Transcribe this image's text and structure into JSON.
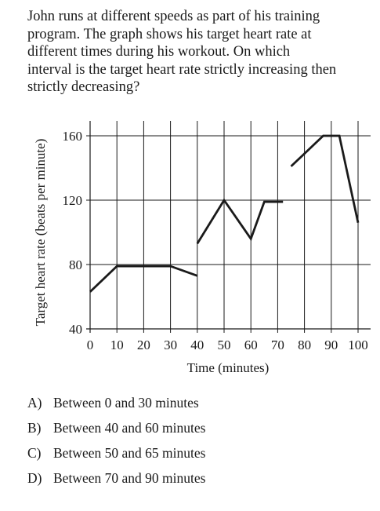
{
  "question": {
    "line1": "John runs at different speeds as part of his training",
    "line2": "program.  The graph shows his target heart rate at",
    "line3": "different times during his workout.  On which",
    "line4": "interval is the target heart rate strictly increasing then",
    "line5": "strictly decreasing?"
  },
  "chart_data": {
    "type": "line",
    "title": "",
    "xlabel": "Time (minutes)",
    "ylabel": "Target heart rate (beats per minute)",
    "xlim": [
      0,
      100
    ],
    "ylim": [
      40,
      160
    ],
    "x_ticks": [
      0,
      10,
      20,
      30,
      40,
      50,
      60,
      70,
      80,
      90,
      100
    ],
    "y_ticks": [
      40,
      80,
      120,
      160
    ],
    "grid": true,
    "series": [
      {
        "x": [
          0,
          10,
          30,
          40
        ],
        "y": [
          63,
          79,
          79,
          73
        ]
      },
      {
        "x": [
          40,
          50,
          60,
          65,
          72
        ],
        "y": [
          93,
          120,
          96,
          119,
          119
        ]
      },
      {
        "x": [
          75,
          87,
          93,
          100
        ],
        "y": [
          141,
          160,
          160,
          106
        ]
      }
    ]
  },
  "choices": [
    {
      "letter": "A)",
      "text": "Between 0 and 30 minutes"
    },
    {
      "letter": "B)",
      "text": "Between 40 and 60 minutes"
    },
    {
      "letter": "C)",
      "text": "Between 50 and 65 minutes"
    },
    {
      "letter": "D)",
      "text": "Between 70 and 90 minutes"
    }
  ]
}
